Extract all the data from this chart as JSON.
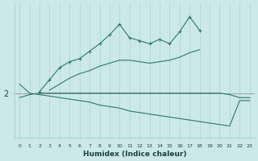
{
  "xlabel": "Humidex (Indice chaleur)",
  "bg_color": "#cce8e8",
  "line_color": "#2a7a6a",
  "x_values": [
    0,
    1,
    2,
    3,
    4,
    5,
    6,
    7,
    8,
    9,
    10,
    11,
    12,
    13,
    14,
    15,
    16,
    17,
    18,
    19,
    20,
    21,
    22,
    23
  ],
  "jagged_y": [
    null,
    null,
    2.05,
    2.45,
    2.85,
    3.05,
    3.15,
    3.4,
    3.65,
    3.95,
    4.3,
    3.85,
    3.75,
    3.65,
    3.8,
    3.65,
    4.05,
    4.55,
    4.1,
    null,
    null,
    null,
    null,
    null
  ],
  "flat_y": [
    1.85,
    1.95,
    2.0,
    2.0,
    2.0,
    2.0,
    2.0,
    2.0,
    2.0,
    2.0,
    2.0,
    2.0,
    2.0,
    2.0,
    2.0,
    2.0,
    2.0,
    2.0,
    2.0,
    2.0,
    2.0,
    1.95,
    1.85,
    1.85
  ],
  "rising_y": [
    null,
    null,
    null,
    2.1,
    2.3,
    2.5,
    2.65,
    2.75,
    2.9,
    3.0,
    3.1,
    3.1,
    3.05,
    3.0,
    3.05,
    3.1,
    3.2,
    3.35,
    3.45,
    null,
    null,
    null,
    null,
    null
  ],
  "declining_y": [
    2.3,
    2.0,
    1.95,
    1.9,
    1.85,
    1.8,
    1.75,
    1.7,
    1.6,
    1.55,
    1.5,
    1.4,
    1.35,
    1.3,
    1.25,
    1.2,
    1.15,
    1.1,
    1.05,
    1.0,
    0.95,
    0.9,
    1.75,
    1.75
  ],
  "ylim": [
    0.5,
    5.0
  ],
  "xlim": [
    -0.5,
    23.5
  ],
  "ytick_vals": [
    2
  ],
  "ytick_labels": [
    "2"
  ],
  "xtick_vals": [
    0,
    1,
    2,
    3,
    4,
    5,
    6,
    7,
    8,
    9,
    10,
    11,
    12,
    13,
    14,
    15,
    16,
    17,
    18,
    19,
    20,
    21,
    22,
    23
  ],
  "grid_color": "#a8d4d4",
  "font_color": "#1a4040",
  "hline_color": "#888888"
}
